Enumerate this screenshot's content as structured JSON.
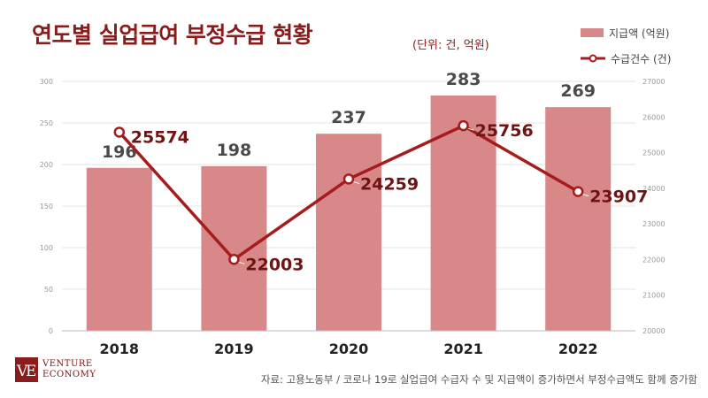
{
  "header": {
    "title": "연도별 실업급여 부정수급 현황",
    "unit": "(단위: 건, 억원)"
  },
  "legend": {
    "bar_label": "지급액 (억원)",
    "line_label": "수급건수 (건)"
  },
  "footer": {
    "source": "자료: 고용노동부 / 코로나 19로 실업급여 수급자 수 및 지급액이 증가하면서 부정수급액도 함께 증가함",
    "logo_line1": "VENTURE",
    "logo_line2": "ECONOMY"
  },
  "colors": {
    "bar": "#d9888a",
    "line": "#a51c1c",
    "title": "#8a1c1c"
  },
  "chart_data": {
    "type": "bar+line",
    "categories": [
      "2018",
      "2019",
      "2020",
      "2021",
      "2022"
    ],
    "series": [
      {
        "name": "지급액 (억원)",
        "type": "bar",
        "axis": "left",
        "values": [
          196,
          198,
          237,
          283,
          269
        ]
      },
      {
        "name": "수급건수 (건)",
        "type": "line",
        "axis": "right",
        "values": [
          25574,
          22003,
          24259,
          25756,
          23907
        ]
      }
    ],
    "y_left": {
      "min": 0,
      "max": 300,
      "ticks": [
        "0",
        "50",
        "100",
        "150",
        "200",
        "250",
        "300"
      ]
    },
    "y_right": {
      "min": 20000,
      "max": 27000,
      "ticks": [
        "20000",
        "21000",
        "22000",
        "23000",
        "24000",
        "25000",
        "26000",
        "27000"
      ]
    },
    "grid": true
  }
}
